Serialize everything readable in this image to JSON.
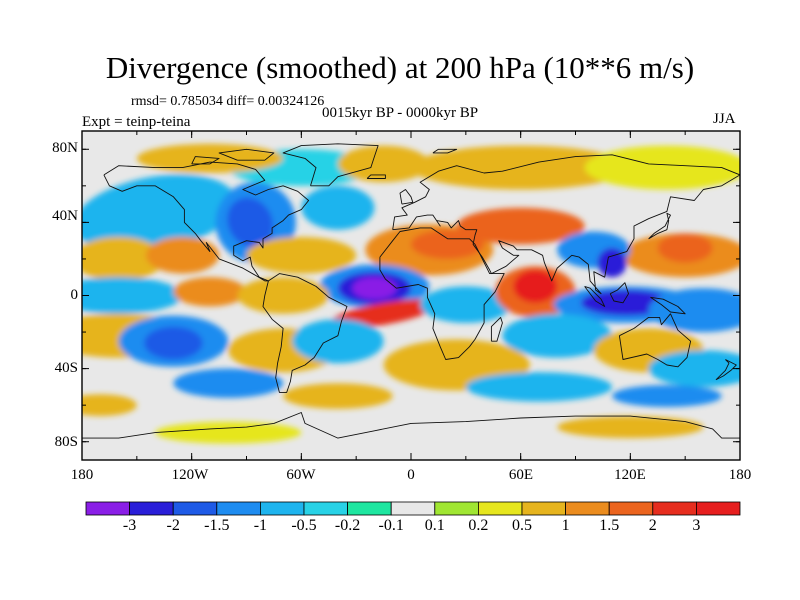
{
  "title": "Divergence (smoothed) at 200 hPa (10**6 m/s)",
  "stats_text": "rmsd= 0.785034  diff= 0.00324126",
  "period_text": "0015kyr BP - 0000kyr BP",
  "experiment_text": "Expt = teinp-teina",
  "season": "JJA",
  "lat_ticks": [
    "80N",
    "40N",
    "0",
    "40S",
    "80S"
  ],
  "lon_ticks": [
    "180",
    "120W",
    "60W",
    "0",
    "60E",
    "120E",
    "180"
  ],
  "colorbar": {
    "labels": [
      "-3",
      "-2",
      "-1.5",
      "-1",
      "-0.5",
      "-0.2",
      "-0.1",
      "0.1",
      "0.2",
      "0.5",
      "1",
      "1.5",
      "2",
      "3"
    ],
    "colors": [
      "#8a1ee6",
      "#2a1ed8",
      "#1e5ae6",
      "#1e8cf0",
      "#1eb4ee",
      "#28d2e6",
      "#1ee6a0",
      "#e8e8e8",
      "#a0e632",
      "#e6e61e",
      "#e6b41e",
      "#eb8c1e",
      "#eb641e",
      "#e62d1e",
      "#e61e1e"
    ]
  },
  "field_features": [
    {
      "name": "atlantic-convergence",
      "lon": -20,
      "lat": 4,
      "level": 0
    },
    {
      "name": "maritime-continent-convergence",
      "lon": 118,
      "lat": -4,
      "level": 1
    },
    {
      "name": "north-america-convergence",
      "lon": -85,
      "lat": 40,
      "level": 3
    },
    {
      "name": "south-pacific-convergence",
      "lon": -130,
      "lat": -25,
      "level": 3
    },
    {
      "name": "indian-ocean-divergence",
      "lon": 68,
      "lat": 5,
      "level": 14
    },
    {
      "name": "tropical-atlantic-divergence",
      "lon": -15,
      "lat": -10,
      "level": 13
    },
    {
      "name": "north-africa-divergence",
      "lon": 10,
      "lat": 25,
      "level": 11
    },
    {
      "name": "west-pacific-divergence",
      "lon": 140,
      "lat": 20,
      "level": 12
    },
    {
      "name": "south-atlantic-divergence",
      "lon": 25,
      "lat": -38,
      "level": 10
    }
  ]
}
